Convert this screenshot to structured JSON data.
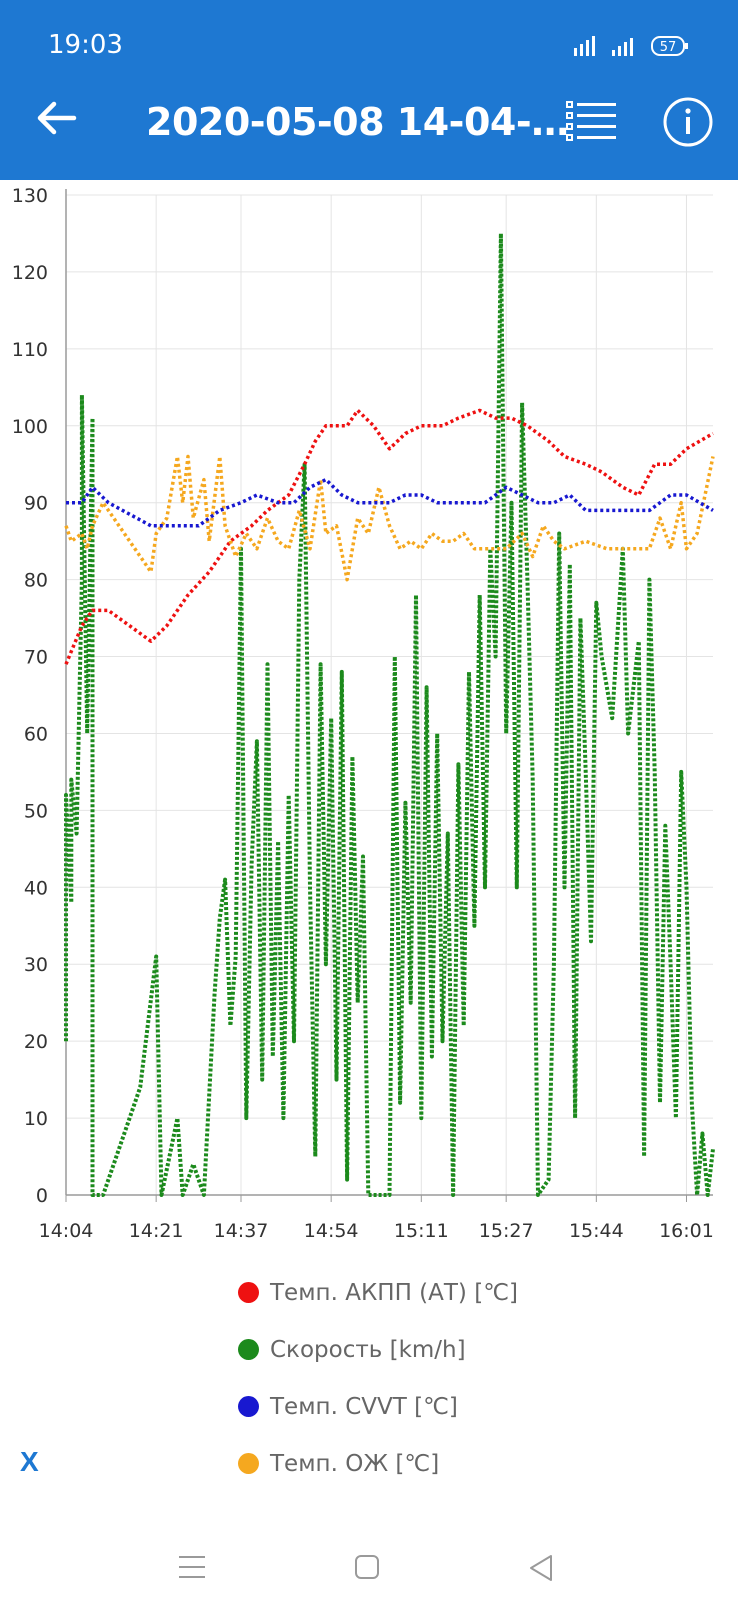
{
  "status_bar": {
    "time": "19:03",
    "battery": "57"
  },
  "header": {
    "title": "2020-05-08 14-04-…"
  },
  "legend_close": "X",
  "colors": {
    "appbar": "#1e78d2",
    "at": "#ee1111",
    "speed": "#1c8a1c",
    "cvvt": "#1818d0",
    "coolant": "#f5a81f"
  },
  "chart_data": {
    "type": "line",
    "ylim": [
      0,
      130
    ],
    "yticks": [
      0,
      10,
      20,
      30,
      40,
      50,
      60,
      70,
      80,
      90,
      100,
      110,
      120,
      130
    ],
    "xlim": [
      "14:04",
      "16:06"
    ],
    "xticks": [
      "14:04",
      "14:21",
      "14:37",
      "14:54",
      "15:11",
      "15:27",
      "15:44",
      "16:01"
    ],
    "xlabel": "",
    "ylabel": "",
    "grid": true,
    "legend_position": "bottom",
    "series": [
      {
        "name": "Темп. АКПП (АТ) [℃]",
        "color": "#ee1111",
        "points": [
          [
            "14:04",
            69
          ],
          [
            "14:07",
            74
          ],
          [
            "14:09",
            76
          ],
          [
            "14:12",
            76
          ],
          [
            "14:20",
            72
          ],
          [
            "14:23",
            74
          ],
          [
            "14:27",
            78
          ],
          [
            "14:31",
            81
          ],
          [
            "14:35",
            85
          ],
          [
            "14:39",
            87
          ],
          [
            "14:42",
            89
          ],
          [
            "14:46",
            91
          ],
          [
            "14:49",
            95
          ],
          [
            "14:51",
            98
          ],
          [
            "14:53",
            100
          ],
          [
            "14:57",
            100
          ],
          [
            "14:59",
            102
          ],
          [
            "15:02",
            100
          ],
          [
            "15:05",
            97
          ],
          [
            "15:08",
            99
          ],
          [
            "15:11",
            100
          ],
          [
            "15:15",
            100
          ],
          [
            "15:18",
            101
          ],
          [
            "15:22",
            102
          ],
          [
            "15:25",
            101
          ],
          [
            "15:28",
            101
          ],
          [
            "15:31",
            100
          ],
          [
            "15:35",
            98
          ],
          [
            "15:38",
            96
          ],
          [
            "15:42",
            95
          ],
          [
            "15:45",
            94
          ],
          [
            "15:49",
            92
          ],
          [
            "15:52",
            91
          ],
          [
            "15:55",
            95
          ],
          [
            "15:58",
            95
          ],
          [
            "16:01",
            97
          ],
          [
            "16:06",
            99
          ]
        ]
      },
      {
        "name": "Скорость [km/h]",
        "color": "#1c8a1c",
        "points": [
          [
            "14:04",
            20
          ],
          [
            "14:04",
            52
          ],
          [
            "14:05",
            38
          ],
          [
            "14:05",
            54
          ],
          [
            "14:06",
            47
          ],
          [
            "14:07",
            80
          ],
          [
            "14:07",
            104
          ],
          [
            "14:08",
            60
          ],
          [
            "14:09",
            101
          ],
          [
            "14:09",
            0
          ],
          [
            "14:11",
            0
          ],
          [
            "14:15",
            8
          ],
          [
            "14:18",
            14
          ],
          [
            "14:21",
            31
          ],
          [
            "14:22",
            0
          ],
          [
            "14:25",
            10
          ],
          [
            "14:26",
            0
          ],
          [
            "14:28",
            4
          ],
          [
            "14:30",
            0
          ],
          [
            "14:32",
            26
          ],
          [
            "14:33",
            36
          ],
          [
            "14:34",
            41
          ],
          [
            "14:35",
            22
          ],
          [
            "14:36",
            31
          ],
          [
            "14:37",
            84
          ],
          [
            "14:38",
            10
          ],
          [
            "14:39",
            43
          ],
          [
            "14:40",
            59
          ],
          [
            "14:41",
            15
          ],
          [
            "14:42",
            69
          ],
          [
            "14:43",
            18
          ],
          [
            "14:44",
            46
          ],
          [
            "14:45",
            10
          ],
          [
            "14:46",
            52
          ],
          [
            "14:47",
            20
          ],
          [
            "14:48",
            80
          ],
          [
            "14:49",
            95
          ],
          [
            "14:50",
            40
          ],
          [
            "14:51",
            5
          ],
          [
            "14:52",
            69
          ],
          [
            "14:53",
            30
          ],
          [
            "14:54",
            62
          ],
          [
            "14:55",
            15
          ],
          [
            "14:56",
            68
          ],
          [
            "14:57",
            2
          ],
          [
            "14:58",
            57
          ],
          [
            "14:59",
            25
          ],
          [
            "15:00",
            44
          ],
          [
            "15:01",
            0
          ],
          [
            "15:05",
            0
          ],
          [
            "15:06",
            70
          ],
          [
            "15:07",
            12
          ],
          [
            "15:08",
            51
          ],
          [
            "15:09",
            25
          ],
          [
            "15:10",
            78
          ],
          [
            "15:11",
            10
          ],
          [
            "15:12",
            66
          ],
          [
            "15:13",
            18
          ],
          [
            "15:14",
            60
          ],
          [
            "15:15",
            20
          ],
          [
            "15:16",
            47
          ],
          [
            "15:17",
            0
          ],
          [
            "15:18",
            56
          ],
          [
            "15:19",
            22
          ],
          [
            "15:20",
            68
          ],
          [
            "15:21",
            35
          ],
          [
            "15:22",
            78
          ],
          [
            "15:23",
            40
          ],
          [
            "15:24",
            84
          ],
          [
            "15:25",
            70
          ],
          [
            "15:26",
            125
          ],
          [
            "15:27",
            60
          ],
          [
            "15:28",
            90
          ],
          [
            "15:29",
            40
          ],
          [
            "15:30",
            103
          ],
          [
            "15:31",
            80
          ],
          [
            "15:32",
            54
          ],
          [
            "15:33",
            0
          ],
          [
            "15:35",
            2
          ],
          [
            "15:36",
            30
          ],
          [
            "15:37",
            86
          ],
          [
            "15:38",
            40
          ],
          [
            "15:39",
            82
          ],
          [
            "15:40",
            10
          ],
          [
            "15:41",
            75
          ],
          [
            "15:42",
            55
          ],
          [
            "15:43",
            33
          ],
          [
            "15:44",
            77
          ],
          [
            "15:45",
            70
          ],
          [
            "15:47",
            62
          ],
          [
            "15:49",
            84
          ],
          [
            "15:50",
            60
          ],
          [
            "15:52",
            72
          ],
          [
            "15:53",
            5
          ],
          [
            "15:54",
            80
          ],
          [
            "15:55",
            55
          ],
          [
            "15:56",
            12
          ],
          [
            "15:57",
            48
          ],
          [
            "15:58",
            30
          ],
          [
            "15:59",
            10
          ],
          [
            "16:00",
            55
          ],
          [
            "16:01",
            40
          ],
          [
            "16:02",
            12
          ],
          [
            "16:03",
            0
          ],
          [
            "16:04",
            8
          ],
          [
            "16:05",
            0
          ],
          [
            "16:06",
            6
          ]
        ]
      },
      {
        "name": "Темп. CVVT [℃]",
        "color": "#1818d0",
        "points": [
          [
            "14:04",
            90
          ],
          [
            "14:07",
            90
          ],
          [
            "14:09",
            92
          ],
          [
            "14:12",
            90
          ],
          [
            "14:20",
            87
          ],
          [
            "14:24",
            87
          ],
          [
            "14:29",
            87
          ],
          [
            "14:33",
            89
          ],
          [
            "14:37",
            90
          ],
          [
            "14:40",
            91
          ],
          [
            "14:44",
            90
          ],
          [
            "14:47",
            90
          ],
          [
            "14:50",
            92
          ],
          [
            "14:53",
            93
          ],
          [
            "14:56",
            91
          ],
          [
            "14:59",
            90
          ],
          [
            "15:02",
            90
          ],
          [
            "15:05",
            90
          ],
          [
            "15:08",
            91
          ],
          [
            "15:11",
            91
          ],
          [
            "15:14",
            90
          ],
          [
            "15:17",
            90
          ],
          [
            "15:20",
            90
          ],
          [
            "15:23",
            90
          ],
          [
            "15:27",
            92
          ],
          [
            "15:30",
            91
          ],
          [
            "15:33",
            90
          ],
          [
            "15:36",
            90
          ],
          [
            "15:39",
            91
          ],
          [
            "15:42",
            89
          ],
          [
            "15:46",
            89
          ],
          [
            "15:50",
            89
          ],
          [
            "15:54",
            89
          ],
          [
            "15:58",
            91
          ],
          [
            "16:01",
            91
          ],
          [
            "16:06",
            89
          ]
        ]
      },
      {
        "name": "Темп. ОЖ [℃]",
        "color": "#f5a81f",
        "points": [
          [
            "14:04",
            87
          ],
          [
            "14:05",
            85
          ],
          [
            "14:07",
            86
          ],
          [
            "14:08",
            84
          ],
          [
            "14:09",
            87
          ],
          [
            "14:11",
            90
          ],
          [
            "14:13",
            88
          ],
          [
            "14:20",
            81
          ],
          [
            "14:21",
            86
          ],
          [
            "14:23",
            88
          ],
          [
            "14:25",
            96
          ],
          [
            "14:26",
            90
          ],
          [
            "14:27",
            96
          ],
          [
            "14:28",
            88
          ],
          [
            "14:30",
            93
          ],
          [
            "14:31",
            85
          ],
          [
            "14:33",
            96
          ],
          [
            "14:34",
            87
          ],
          [
            "14:36",
            83
          ],
          [
            "14:38",
            86
          ],
          [
            "14:40",
            84
          ],
          [
            "14:42",
            88
          ],
          [
            "14:44",
            85
          ],
          [
            "14:46",
            84
          ],
          [
            "14:48",
            89
          ],
          [
            "14:50",
            84
          ],
          [
            "14:52",
            93
          ],
          [
            "14:53",
            86
          ],
          [
            "14:55",
            87
          ],
          [
            "14:57",
            80
          ],
          [
            "14:59",
            88
          ],
          [
            "15:01",
            86
          ],
          [
            "15:03",
            92
          ],
          [
            "15:05",
            87
          ],
          [
            "15:07",
            84
          ],
          [
            "15:09",
            85
          ],
          [
            "15:11",
            84
          ],
          [
            "15:13",
            86
          ],
          [
            "15:15",
            85
          ],
          [
            "15:17",
            85
          ],
          [
            "15:19",
            86
          ],
          [
            "15:21",
            84
          ],
          [
            "15:23",
            84
          ],
          [
            "15:25",
            84
          ],
          [
            "15:27",
            84
          ],
          [
            "15:30",
            86
          ],
          [
            "15:32",
            83
          ],
          [
            "15:34",
            87
          ],
          [
            "15:36",
            85
          ],
          [
            "15:38",
            84
          ],
          [
            "15:42",
            85
          ],
          [
            "15:46",
            84
          ],
          [
            "15:50",
            84
          ],
          [
            "15:54",
            84
          ],
          [
            "15:56",
            88
          ],
          [
            "15:58",
            84
          ],
          [
            "16:00",
            90
          ],
          [
            "16:01",
            84
          ],
          [
            "16:03",
            86
          ],
          [
            "16:06",
            96
          ]
        ]
      }
    ]
  }
}
